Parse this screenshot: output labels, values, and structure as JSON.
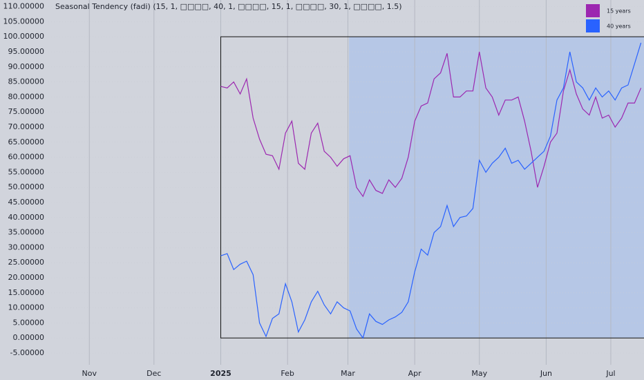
{
  "chart_data": {
    "type": "line",
    "title": "Seasonal Tendency (fadi) (15, 1, □□□□, 40, 1, □□□□, 15, 1, □□□□, 30, 1, □□□□, 1.5)",
    "x": [
      0,
      3,
      6,
      9,
      12,
      15,
      18,
      21,
      24,
      27,
      30,
      33,
      36,
      39,
      42,
      45,
      48,
      51,
      54,
      57,
      60,
      63,
      66,
      69,
      72,
      75,
      78,
      81,
      84,
      87,
      90,
      93,
      96,
      99,
      102,
      105,
      108,
      111,
      114,
      117,
      120,
      123,
      126,
      129,
      132,
      135,
      138,
      141,
      144,
      147,
      150,
      153,
      156,
      159,
      162,
      165,
      168,
      171,
      174,
      177,
      180,
      183,
      186,
      189,
      192,
      195
    ],
    "series": [
      {
        "name": "15 years",
        "color": "#9c27b0",
        "values": [
          83.5,
          83,
          85,
          81,
          86,
          73,
          66,
          61,
          60.5,
          56,
          68,
          72,
          58,
          56,
          68,
          71.3,
          62,
          60,
          57,
          59.5,
          60.5,
          50,
          47,
          52.5,
          49,
          48,
          52.5,
          50,
          53,
          60,
          72,
          77,
          78,
          86,
          88,
          94.5,
          80,
          80,
          82,
          82,
          95,
          83,
          80,
          74,
          79,
          79,
          80,
          72,
          62,
          50,
          57,
          65,
          68,
          82,
          89,
          81,
          76,
          74,
          80,
          73,
          74,
          70,
          73,
          78,
          78,
          83
        ]
      },
      {
        "name": "40 years",
        "color": "#2962ff",
        "values": [
          27.3,
          28,
          22.7,
          24.5,
          25.5,
          21,
          5,
          0.5,
          6.5,
          8,
          18,
          12,
          2,
          6,
          12,
          15.5,
          11,
          8,
          12,
          10,
          9,
          3,
          0,
          8,
          5.5,
          4.5,
          6,
          7,
          8.5,
          12,
          22,
          29.5,
          27.5,
          35,
          37,
          44,
          37,
          40,
          40.5,
          43,
          59,
          55,
          58,
          60,
          63,
          58,
          59,
          56,
          58,
          60,
          62,
          67,
          79,
          83,
          95,
          85,
          83,
          79,
          83,
          80,
          82,
          79,
          83,
          84,
          91,
          98
        ]
      }
    ],
    "xlim": [
      -80,
      196.4
    ],
    "xticks": [
      {
        "value": -61,
        "label": "Nov"
      },
      {
        "value": -31,
        "label": "Dec"
      },
      {
        "value": 0,
        "label": "2025"
      },
      {
        "value": 31,
        "label": "Feb"
      },
      {
        "value": 59,
        "label": "Mar"
      },
      {
        "value": 90,
        "label": "Apr"
      },
      {
        "value": 120,
        "label": "May"
      },
      {
        "value": 151,
        "label": "Jun"
      },
      {
        "value": 181,
        "label": "Jul"
      }
    ],
    "ylim": [
      -8.9,
      112.2
    ],
    "yticks": [
      {
        "value": -5,
        "label": "-5.00000"
      },
      {
        "value": 0,
        "label": "0.00000"
      },
      {
        "value": 5,
        "label": "5.00000"
      },
      {
        "value": 10,
        "label": "10.00000"
      },
      {
        "value": 15,
        "label": "15.00000"
      },
      {
        "value": 20,
        "label": "20.00000"
      },
      {
        "value": 25,
        "label": "25.00000"
      },
      {
        "value": 30,
        "label": "30.00000"
      },
      {
        "value": 35,
        "label": "35.00000"
      },
      {
        "value": 40,
        "label": "40.00000"
      },
      {
        "value": 45,
        "label": "45.00000"
      },
      {
        "value": 50,
        "label": "50.00000"
      },
      {
        "value": 55,
        "label": "55.00000"
      },
      {
        "value": 60,
        "label": "60.00000"
      },
      {
        "value": 65,
        "label": "65.00000"
      },
      {
        "value": 70,
        "label": "70.00000"
      },
      {
        "value": 75,
        "label": "75.00000"
      },
      {
        "value": 80,
        "label": "80.00000"
      },
      {
        "value": 85,
        "label": "85.00000"
      },
      {
        "value": 90,
        "label": "90.00000"
      },
      {
        "value": 95,
        "label": "95.00000"
      },
      {
        "value": 100,
        "label": "100.00000"
      },
      {
        "value": 105,
        "label": "105.00000"
      },
      {
        "value": 110,
        "label": "110.00000"
      }
    ],
    "box": {
      "x0": 0,
      "y0": 0,
      "y1": 100
    },
    "highlight": {
      "x0": 59.5,
      "color": "#b6c7e6"
    },
    "grid": true,
    "legend": "top-right"
  }
}
